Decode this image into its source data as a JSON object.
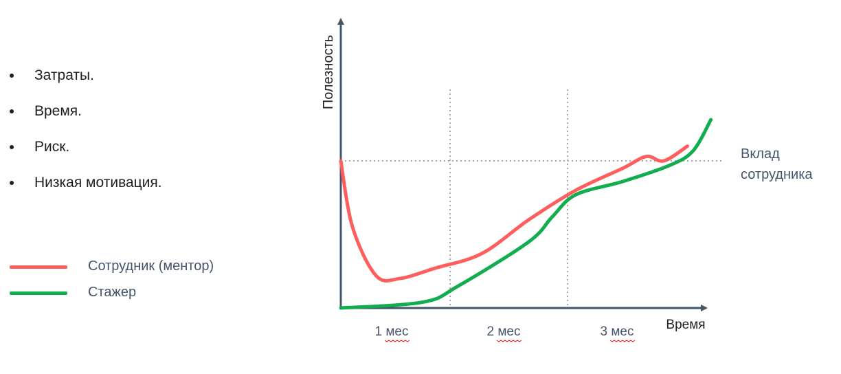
{
  "bullets": [
    "Затраты.",
    "Время.",
    "Риск.",
    "Низкая мотивация."
  ],
  "legend": [
    {
      "label": "Сотрудник (ментор)",
      "color": "#ff5e5e"
    },
    {
      "label": "Стажер",
      "color": "#12ad4f"
    }
  ],
  "chart_data": {
    "type": "line",
    "ylabel": "Полезность",
    "xlabel": "Время",
    "categories": [
      "1 мес",
      "2 мес",
      "3 мес"
    ],
    "reference_label": "Вклад сотрудника",
    "xlim": [
      0,
      3.3
    ],
    "ylim": [
      0,
      1.4
    ],
    "reference_y": 1.0,
    "month_dividers": [
      1,
      2
    ],
    "series": [
      {
        "name": "Сотрудник (ментор)",
        "color": "#ff5e5e",
        "points": [
          [
            0,
            1.0
          ],
          [
            0.1,
            0.55
          ],
          [
            0.3,
            0.22
          ],
          [
            0.5,
            0.2
          ],
          [
            0.8,
            0.27
          ],
          [
            1.2,
            0.37
          ],
          [
            1.6,
            0.6
          ],
          [
            2.0,
            0.8
          ],
          [
            2.4,
            0.95
          ],
          [
            2.6,
            1.03
          ],
          [
            2.75,
            1.0
          ],
          [
            2.95,
            1.1
          ]
        ]
      },
      {
        "name": "Стажер",
        "color": "#12ad4f",
        "points": [
          [
            0,
            0.0
          ],
          [
            0.7,
            0.04
          ],
          [
            1.0,
            0.15
          ],
          [
            1.6,
            0.45
          ],
          [
            1.8,
            0.62
          ],
          [
            2.0,
            0.77
          ],
          [
            2.4,
            0.86
          ],
          [
            2.8,
            0.97
          ],
          [
            3.0,
            1.07
          ],
          [
            3.15,
            1.28
          ]
        ]
      }
    ],
    "grid": false,
    "legend_position": "left"
  },
  "colors": {
    "axis": "#44546a",
    "grid": "#a6a6a6",
    "text": "#44546a",
    "spellcheck": "#ff0000"
  }
}
